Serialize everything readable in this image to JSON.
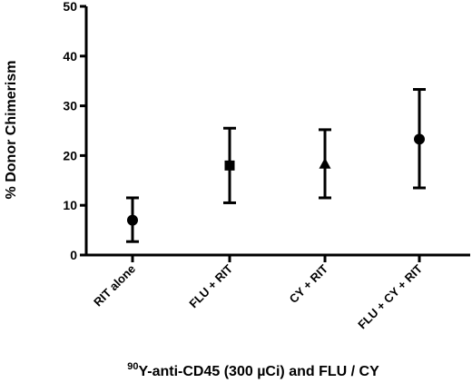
{
  "chart_data": {
    "type": "scatter",
    "title": "",
    "ylabel": "% Donor Chimerism",
    "xlabel_sup": "90",
    "xlabel": "Y-anti-CD45 (300 µCi) and FLU / CY",
    "ylim": [
      0,
      50
    ],
    "yticks": [
      0,
      10,
      20,
      30,
      40,
      50
    ],
    "categories": [
      "RIT alone",
      "FLU + RIT",
      "CY + RIT",
      "FLU + CY + RIT"
    ],
    "points": [
      {
        "category": "RIT alone",
        "mean": 7.0,
        "lower": 2.7,
        "upper": 11.5,
        "marker": "circle"
      },
      {
        "category": "FLU + RIT",
        "mean": 18.0,
        "lower": 10.5,
        "upper": 25.5,
        "marker": "square"
      },
      {
        "category": "CY + RIT",
        "mean": 18.3,
        "lower": 11.5,
        "upper": 25.2,
        "marker": "triangle"
      },
      {
        "category": "FLU + CY + RIT",
        "mean": 23.3,
        "lower": 13.5,
        "upper": 33.3,
        "marker": "circle"
      }
    ],
    "grid": false,
    "legend": "none"
  }
}
